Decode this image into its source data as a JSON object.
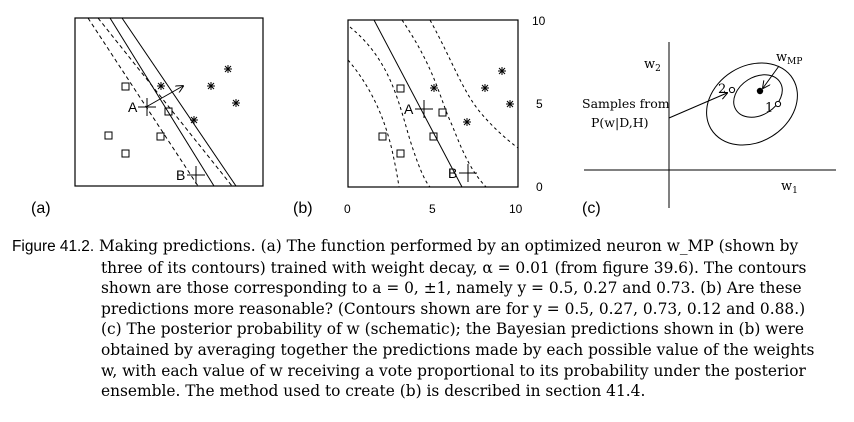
{
  "figure": {
    "panels": {
      "a": {
        "label": "(a)",
        "points": {
          "A": "A",
          "B": "B"
        }
      },
      "b": {
        "label": "(b)",
        "points": {
          "A": "A",
          "B": "B"
        },
        "y_ticks": [
          "10",
          "5",
          "0"
        ],
        "x_ticks": [
          "0",
          "5",
          "10"
        ]
      },
      "c": {
        "label": "(c)",
        "axis_x": "w",
        "axis_x_sub": "1",
        "axis_y": "w",
        "axis_y_sub": "2",
        "wmp": "w",
        "wmp_sub": "MP",
        "sample_1": "1",
        "sample_2": "2",
        "samples_line1": "Samples from",
        "samples_line2": "P(w|D,H)"
      }
    }
  },
  "caption": {
    "number": "Figure 41.2.",
    "lines": [
      "Making predictions. (a) The function performed by an optimized neuron w_MP (shown by",
      "three of its contours) trained with weight decay, α = 0.01 (from figure 39.6). The contours",
      "shown are those corresponding to a = 0, ±1, namely y = 0.5, 0.27 and 0.73. (b) Are these",
      "predictions more reasonable? (Contours shown are for y = 0.5, 0.27, 0.73, 0.12 and 0.88.)",
      "(c) The posterior probability of w (schematic); the Bayesian predictions shown in (b) were",
      "obtained by averaging together the predictions made by each possible value of the weights",
      "w, with each value of w receiving a vote proportional to its probability under the posterior",
      "ensemble. The method used to create (b) is described in section 41.4."
    ]
  }
}
